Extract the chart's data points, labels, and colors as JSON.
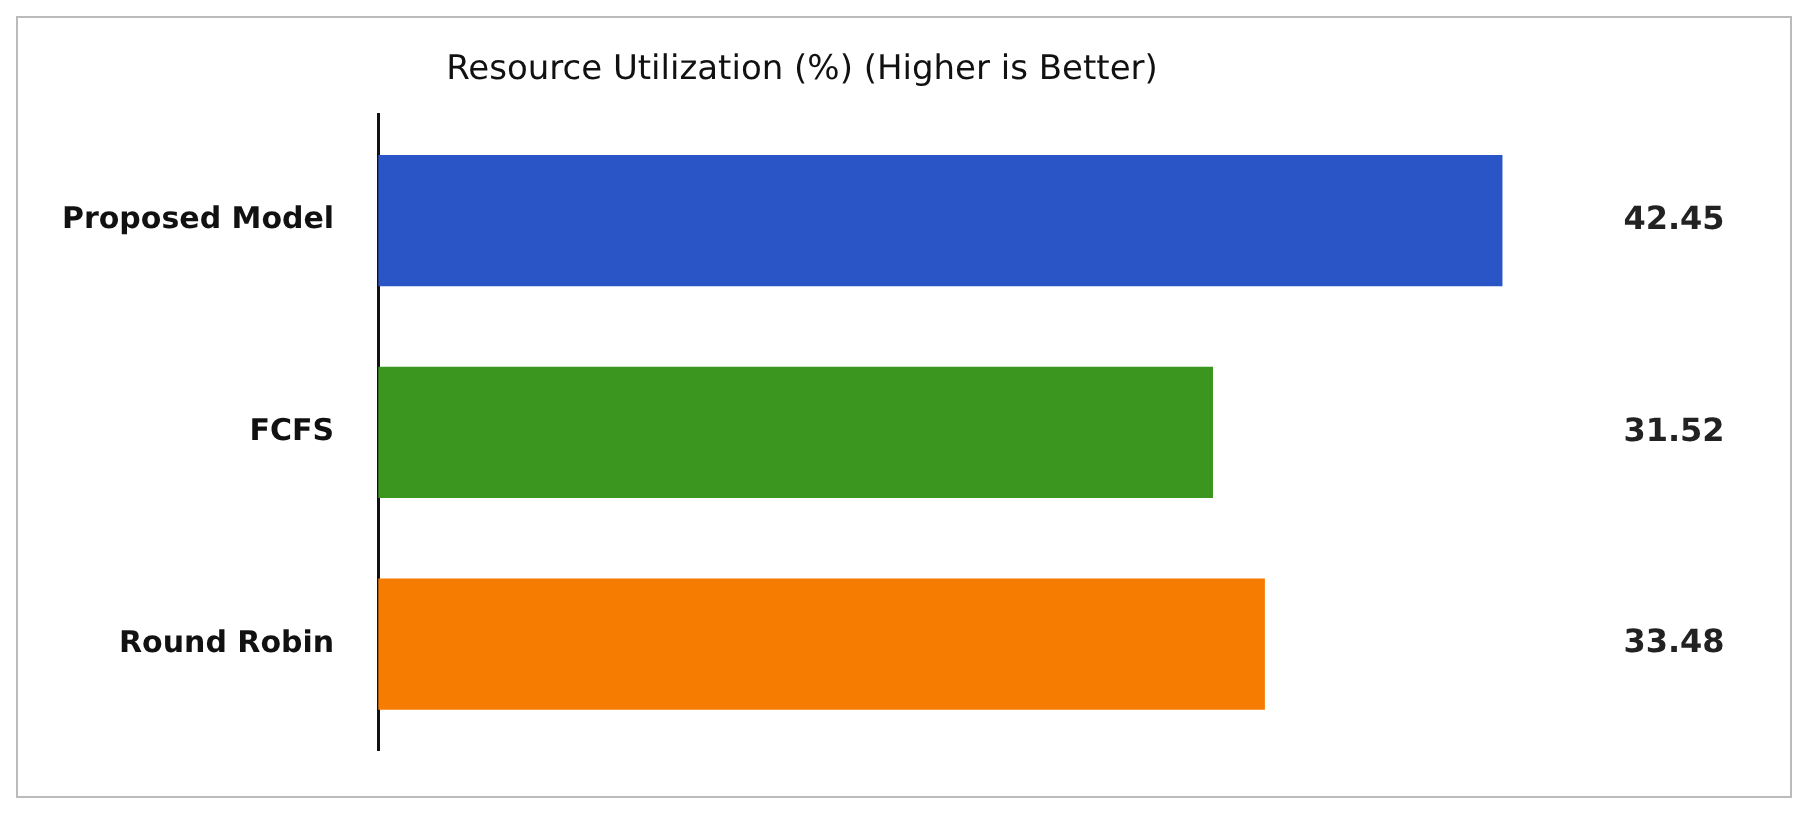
{
  "chart_data": {
    "type": "bar",
    "orientation": "horizontal",
    "title": "Resource Utilization (%) (Higher is Better)",
    "categories": [
      "Proposed Model",
      "FCFS",
      "Round Robin"
    ],
    "values": [
      42.45,
      31.52,
      33.48
    ],
    "colors": [
      "#2a55c6",
      "#3a961f",
      "#f57c00"
    ],
    "data_labels": true,
    "legend": false
  }
}
